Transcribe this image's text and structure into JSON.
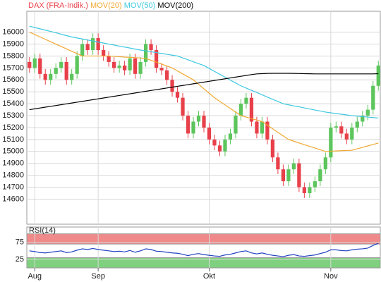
{
  "chart_data": [
    {
      "type": "candlestick",
      "categories": [
        null,
        "Aug",
        null,
        null,
        null,
        null,
        null,
        null,
        null,
        null,
        null,
        null,
        null,
        "Sep",
        null,
        null,
        null,
        null,
        null,
        null,
        null,
        null,
        null,
        null,
        null,
        null,
        null,
        null,
        null,
        null,
        null,
        null,
        null,
        null,
        "Okt",
        null,
        null,
        null,
        null,
        null,
        null,
        null,
        null,
        null,
        null,
        null,
        null,
        null,
        null,
        null,
        null,
        null,
        null,
        null,
        null,
        null,
        null,
        "Nov",
        null,
        null,
        null,
        null,
        null,
        null,
        null,
        null,
        null
      ],
      "candles": {
        "name": "DAX (FRA-Indik.)",
        "color": "#e8404a",
        "up_color": "#5cc55c",
        "down_color": "#e8404a",
        "open": [
          15750,
          15700,
          15780,
          15650,
          15600,
          15650,
          15700,
          15750,
          15600,
          15650,
          15800,
          15900,
          15850,
          15950,
          15850,
          15800,
          15750,
          15700,
          15720,
          15680,
          15780,
          15650,
          15750,
          15900,
          15850,
          15700,
          15680,
          15600,
          15500,
          15450,
          15300,
          15150,
          15250,
          15300,
          15200,
          15100,
          15050,
          15000,
          15100,
          15150,
          15300,
          15400,
          15450,
          15250,
          15150,
          15250,
          15100,
          14950,
          14850,
          14750,
          14850,
          14900,
          14700,
          14650,
          14700,
          14750,
          14850,
          14950,
          15200,
          15210,
          15150,
          15100,
          15200,
          15250,
          15300,
          15350,
          15550
        ],
        "high": [
          15790,
          15820,
          15820,
          15690,
          15690,
          15740,
          15790,
          15790,
          15690,
          15840,
          15940,
          15940,
          15990,
          15990,
          15890,
          15840,
          15790,
          15760,
          15760,
          15820,
          15820,
          15790,
          15940,
          15940,
          15890,
          15740,
          15720,
          15640,
          15540,
          15490,
          15340,
          15290,
          15340,
          15340,
          15240,
          15140,
          15090,
          15140,
          15190,
          15340,
          15440,
          15490,
          15490,
          15290,
          15290,
          15290,
          15140,
          14990,
          14890,
          14890,
          14940,
          14940,
          14740,
          14740,
          14790,
          14890,
          14990,
          15240,
          15250,
          15250,
          15190,
          15240,
          15290,
          15340,
          15390,
          15590,
          15760
        ],
        "low": [
          15660,
          15660,
          15610,
          15560,
          15560,
          15610,
          15660,
          15560,
          15560,
          15610,
          15760,
          15810,
          15810,
          15810,
          15760,
          15710,
          15660,
          15660,
          15640,
          15640,
          15610,
          15610,
          15710,
          15810,
          15660,
          15640,
          15560,
          15460,
          15410,
          15260,
          15110,
          15110,
          15210,
          15160,
          15060,
          15010,
          14960,
          14960,
          15060,
          15110,
          15260,
          15360,
          15210,
          15110,
          15110,
          15060,
          14910,
          14810,
          14710,
          14710,
          14810,
          14660,
          14610,
          14610,
          14660,
          14710,
          14810,
          14910,
          15160,
          15110,
          15060,
          15060,
          15160,
          15210,
          15260,
          15310,
          15510
        ],
        "close": [
          15700,
          15780,
          15650,
          15600,
          15650,
          15700,
          15750,
          15600,
          15650,
          15800,
          15900,
          15850,
          15950,
          15850,
          15800,
          15750,
          15700,
          15720,
          15680,
          15780,
          15650,
          15750,
          15900,
          15850,
          15700,
          15680,
          15600,
          15500,
          15450,
          15300,
          15150,
          15250,
          15300,
          15200,
          15100,
          15050,
          15000,
          15100,
          15150,
          15300,
          15400,
          15450,
          15250,
          15150,
          15250,
          15100,
          14950,
          14850,
          14750,
          14850,
          14900,
          14700,
          14650,
          14700,
          14750,
          14850,
          14950,
          15200,
          15210,
          15150,
          15100,
          15200,
          15250,
          15300,
          15350,
          15550,
          15720
        ]
      },
      "series": [
        {
          "name": "MOV(20)",
          "color": "#f0a830",
          "values": [
            16000,
            15980,
            15960,
            15940,
            15920,
            15900,
            15880,
            15860,
            15840,
            15820,
            15800,
            15800,
            15800,
            15800,
            15800,
            15800,
            15797,
            15794,
            15791,
            15789,
            15786,
            15783,
            15780,
            15764,
            15748,
            15732,
            15716,
            15700,
            15675,
            15650,
            15625,
            15600,
            15563,
            15525,
            15488,
            15450,
            15420,
            15390,
            15360,
            15330,
            15300,
            15288,
            15275,
            15263,
            15250,
            15220,
            15190,
            15160,
            15130,
            15100,
            15086,
            15071,
            15057,
            15043,
            15029,
            15014,
            15000,
            15002,
            15004,
            15006,
            15008,
            15010,
            15022,
            15034,
            15046,
            15058,
            15070
          ]
        },
        {
          "name": "MOV(50)",
          "color": "#40c8e0",
          "values": [
            16050,
            16039,
            16028,
            16017,
            16006,
            15995,
            15983,
            15971,
            15960,
            15951,
            15943,
            15934,
            15926,
            15917,
            15909,
            15900,
            15892,
            15883,
            15875,
            15867,
            15858,
            15850,
            15843,
            15836,
            15829,
            15821,
            15814,
            15807,
            15800,
            15784,
            15768,
            15752,
            15736,
            15720,
            15696,
            15671,
            15647,
            15623,
            15598,
            15574,
            15550,
            15531,
            15512,
            15494,
            15475,
            15456,
            15437,
            15419,
            15400,
            15391,
            15382,
            15374,
            15365,
            15356,
            15347,
            15339,
            15330,
            15324,
            15318,
            15312,
            15306,
            15300,
            15296,
            15292,
            15288,
            15284,
            15280
          ]
        },
        {
          "name": "MOV(200)",
          "color": "#000000",
          "values": [
            15350,
            15357,
            15364,
            15371,
            15378,
            15385,
            15392,
            15399,
            15406,
            15413,
            15420,
            15427,
            15434,
            15441,
            15448,
            15455,
            15462,
            15469,
            15476,
            15483,
            15490,
            15497,
            15504,
            15511,
            15518,
            15525,
            15532,
            15539,
            15546,
            15553,
            15560,
            15567,
            15574,
            15581,
            15588,
            15595,
            15602,
            15609,
            15616,
            15623,
            15630,
            15637,
            15644,
            15650,
            15652,
            15654,
            15655,
            15655,
            15655,
            15655,
            15654,
            15653,
            15652,
            15651,
            15650,
            15650,
            15650,
            15650,
            15650,
            15650,
            15650,
            15650,
            15650,
            15650,
            15650,
            15650,
            15652
          ]
        }
      ],
      "ylim": [
        14390,
        16175
      ],
      "yticks": [
        14600,
        14700,
        14800,
        14900,
        15000,
        15100,
        15200,
        15300,
        15400,
        15500,
        15600,
        15700,
        15800,
        15900,
        16000
      ],
      "grid": true
    },
    {
      "type": "line",
      "title": "RSI(14)",
      "series": [
        {
          "name": "RSI(14)",
          "color": "#2040c0",
          "values": [
            50,
            48,
            45,
            44,
            46,
            48,
            50,
            45,
            47,
            52,
            56,
            54,
            57,
            54,
            52,
            50,
            48,
            49,
            47,
            51,
            46,
            50,
            56,
            54,
            49,
            48,
            46,
            44,
            43,
            40,
            36,
            40,
            42,
            39,
            37,
            35,
            34,
            38,
            40,
            44,
            48,
            50,
            44,
            41,
            44,
            40,
            37,
            35,
            33,
            37,
            39,
            35,
            34,
            36,
            38,
            42,
            46,
            53,
            53,
            51,
            50,
            53,
            55,
            56,
            58,
            66,
            72
          ]
        }
      ],
      "bands": [
        {
          "range": [
            70,
            100
          ],
          "color": "#f08a8a"
        },
        {
          "range": [
            0,
            30
          ],
          "color": "#7fd07f"
        }
      ],
      "ylim": [
        0,
        120
      ],
      "yticks": [
        25,
        75
      ],
      "grid": true
    }
  ]
}
